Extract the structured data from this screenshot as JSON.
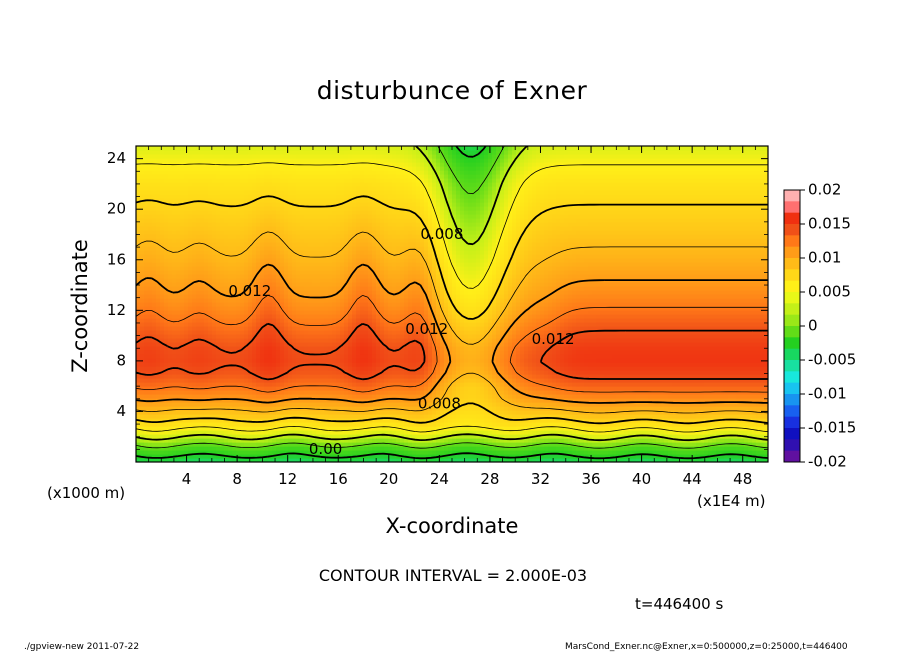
{
  "chart_data": {
    "type": "heatmap",
    "subtype": "filled contour with contour lines",
    "title": "disturbunce of Exner",
    "xlabel": "X-coordinate",
    "ylabel": "Z-coordinate",
    "x_unit_left": "(x1000 m)",
    "x_unit_right": "(x1E4 m)",
    "xlim": [
      0,
      50
    ],
    "ylim": [
      0,
      25
    ],
    "x_ticks": [
      "4",
      "8",
      "12",
      "16",
      "20",
      "24",
      "28",
      "32",
      "36",
      "40",
      "44",
      "48"
    ],
    "x_tick_values": [
      4,
      8,
      12,
      16,
      20,
      24,
      28,
      32,
      36,
      40,
      44,
      48
    ],
    "y_ticks": [
      "4",
      "8",
      "12",
      "16",
      "20",
      "24"
    ],
    "y_tick_values": [
      4,
      8,
      12,
      16,
      20,
      24
    ],
    "contour_interval": "CONTOUR INTERVAL = 2.000E-03",
    "contour_labels": [
      {
        "text": "0.008",
        "x": 24.2,
        "z": 18
      },
      {
        "text": "0.012",
        "x": 9,
        "z": 13.5
      },
      {
        "text": "0.012",
        "x": 23,
        "z": 10.5
      },
      {
        "text": "0.008",
        "x": 24,
        "z": 4.6
      },
      {
        "text": "0.012",
        "x": 33,
        "z": 9.7
      },
      {
        "text": "0.00",
        "x": 15,
        "z": 1
      }
    ],
    "colorbar": {
      "levels": [
        "0.02",
        "0.015",
        "0.01",
        "0.005",
        "0",
        "-0.005",
        "-0.01",
        "-0.015",
        "-0.02"
      ],
      "level_values": [
        0.02,
        0.015,
        0.01,
        0.005,
        0,
        -0.005,
        -0.01,
        -0.015,
        -0.02
      ],
      "colors": [
        "#ffb0b0",
        "#ff7070",
        "#f03010",
        "#f05018",
        "#ff7818",
        "#ff9c18",
        "#ffbb18",
        "#ffd818",
        "#fff018",
        "#e8f818",
        "#c4f018",
        "#9ae818",
        "#62dc18",
        "#24d020",
        "#18d860",
        "#18e0a0",
        "#18e8dc",
        "#18c4f0",
        "#1894f0",
        "#1860f0",
        "#1830e0",
        "#1010c0",
        "#3010b0",
        "#6010a0"
      ]
    },
    "colormap_stops": [
      {
        "v": -0.02,
        "c": "#6010a0"
      },
      {
        "v": -0.015,
        "c": "#1010c0"
      },
      {
        "v": -0.01,
        "c": "#1860f0"
      },
      {
        "v": -0.005,
        "c": "#18c4f0"
      },
      {
        "v": -0.002,
        "c": "#18e0a0"
      },
      {
        "v": 0.0,
        "c": "#24d020"
      },
      {
        "v": 0.002,
        "c": "#62dc18"
      },
      {
        "v": 0.004,
        "c": "#c4f018"
      },
      {
        "v": 0.006,
        "c": "#fff018"
      },
      {
        "v": 0.008,
        "c": "#ffd818"
      },
      {
        "v": 0.01,
        "c": "#ffbb18"
      },
      {
        "v": 0.012,
        "c": "#ff9c18"
      },
      {
        "v": 0.014,
        "c": "#ff7818"
      },
      {
        "v": 0.016,
        "c": "#f05018"
      },
      {
        "v": 0.018,
        "c": "#f03010"
      },
      {
        "v": 0.02,
        "c": "#ff7070"
      }
    ],
    "field_model": {
      "description": "disturbance of Exner function versus X (x1E4 m) and Z (x1000 m)",
      "baseline_profile": [
        {
          "z": 0,
          "v": -0.001
        },
        {
          "z": 1,
          "v": 0.001
        },
        {
          "z": 2,
          "v": 0.004
        },
        {
          "z": 3,
          "v": 0.007
        },
        {
          "z": 4,
          "v": 0.0095
        },
        {
          "z": 5,
          "v": 0.012
        },
        {
          "z": 6,
          "v": 0.014
        },
        {
          "z": 7,
          "v": 0.0155
        },
        {
          "z": 8,
          "v": 0.0162
        },
        {
          "z": 9,
          "v": 0.0158
        },
        {
          "z": 10,
          "v": 0.0148
        },
        {
          "z": 11,
          "v": 0.0138
        },
        {
          "z": 12,
          "v": 0.0128
        },
        {
          "z": 13,
          "v": 0.012
        },
        {
          "z": 14,
          "v": 0.0113
        },
        {
          "z": 15,
          "v": 0.0107
        },
        {
          "z": 16,
          "v": 0.0101
        },
        {
          "z": 17,
          "v": 0.0096
        },
        {
          "z": 18,
          "v": 0.0091
        },
        {
          "z": 19,
          "v": 0.0086
        },
        {
          "z": 20,
          "v": 0.0081
        },
        {
          "z": 21,
          "v": 0.0076
        },
        {
          "z": 22,
          "v": 0.0071
        },
        {
          "z": 23,
          "v": 0.0064
        },
        {
          "z": 24,
          "v": 0.0056
        },
        {
          "z": 25,
          "v": 0.0048
        }
      ],
      "trough": {
        "x": 26.5,
        "width": 3.2,
        "depth": 0.0055
      },
      "crests": [
        {
          "x": 1.0,
          "amp": 0.0012
        },
        {
          "x": 5.0,
          "amp": 0.001
        },
        {
          "x": 10.5,
          "amp": 0.0022
        },
        {
          "x": 18.0,
          "amp": 0.0022
        },
        {
          "x": 22.5,
          "amp": 0.002
        }
      ],
      "plateau": {
        "x_start": 33.5,
        "x_end": 50,
        "amp": 0.0016
      }
    }
  },
  "timestamp": "t=446400 s",
  "footer_left": "./gpview-new  2011-07-22",
  "footer_right": "MarsCond_Exner.nc@Exner,x=0:500000,z=0:25000,t=446400"
}
